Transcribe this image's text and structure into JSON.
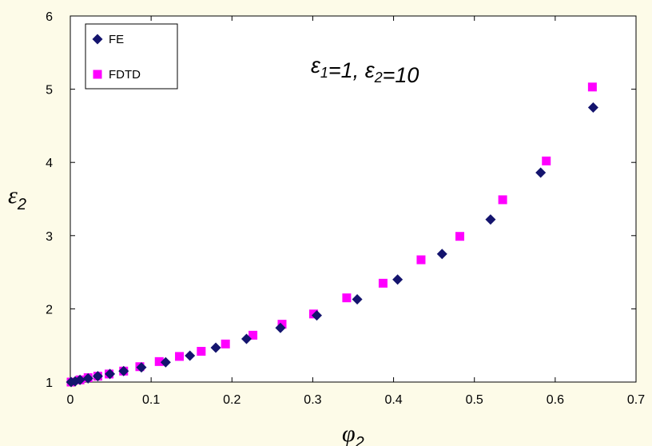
{
  "chart_data": {
    "type": "scatter",
    "xlabel": "φ2",
    "ylabel": "ε2",
    "xlim": [
      0,
      0.7
    ],
    "ylim": [
      1,
      6
    ],
    "x_ticks": [
      "0",
      "0.1",
      "0.2",
      "0.3",
      "0.4",
      "0.5",
      "0.6",
      "0.7"
    ],
    "y_ticks": [
      "1",
      "2",
      "3",
      "4",
      "5",
      "6"
    ],
    "annotation": "ε1=1, ε2=10",
    "legend_position": "top-left",
    "grid": false,
    "series": [
      {
        "name": "FE",
        "marker": "diamond",
        "color": "#14146e",
        "points": [
          [
            0.001,
            1.0
          ],
          [
            0.006,
            1.01
          ],
          [
            0.012,
            1.03
          ],
          [
            0.022,
            1.05
          ],
          [
            0.034,
            1.08
          ],
          [
            0.049,
            1.11
          ],
          [
            0.066,
            1.15
          ],
          [
            0.088,
            1.2
          ],
          [
            0.118,
            1.27
          ],
          [
            0.148,
            1.36
          ],
          [
            0.18,
            1.47
          ],
          [
            0.218,
            1.59
          ],
          [
            0.26,
            1.74
          ],
          [
            0.305,
            1.91
          ],
          [
            0.355,
            2.13
          ],
          [
            0.405,
            2.4
          ],
          [
            0.46,
            2.75
          ],
          [
            0.52,
            3.22
          ],
          [
            0.582,
            3.86
          ],
          [
            0.647,
            4.75
          ]
        ]
      },
      {
        "name": "FDTD",
        "marker": "square",
        "color": "#ff00ff",
        "points": [
          [
            0.001,
            1.0
          ],
          [
            0.012,
            1.03
          ],
          [
            0.022,
            1.06
          ],
          [
            0.034,
            1.08
          ],
          [
            0.048,
            1.11
          ],
          [
            0.066,
            1.15
          ],
          [
            0.086,
            1.21
          ],
          [
            0.11,
            1.28
          ],
          [
            0.135,
            1.35
          ],
          [
            0.162,
            1.42
          ],
          [
            0.192,
            1.52
          ],
          [
            0.226,
            1.64
          ],
          [
            0.262,
            1.79
          ],
          [
            0.301,
            1.93
          ],
          [
            0.342,
            2.15
          ],
          [
            0.387,
            2.35
          ],
          [
            0.434,
            2.67
          ],
          [
            0.482,
            2.99
          ],
          [
            0.535,
            3.49
          ],
          [
            0.589,
            4.02
          ],
          [
            0.646,
            5.03
          ]
        ]
      }
    ]
  }
}
